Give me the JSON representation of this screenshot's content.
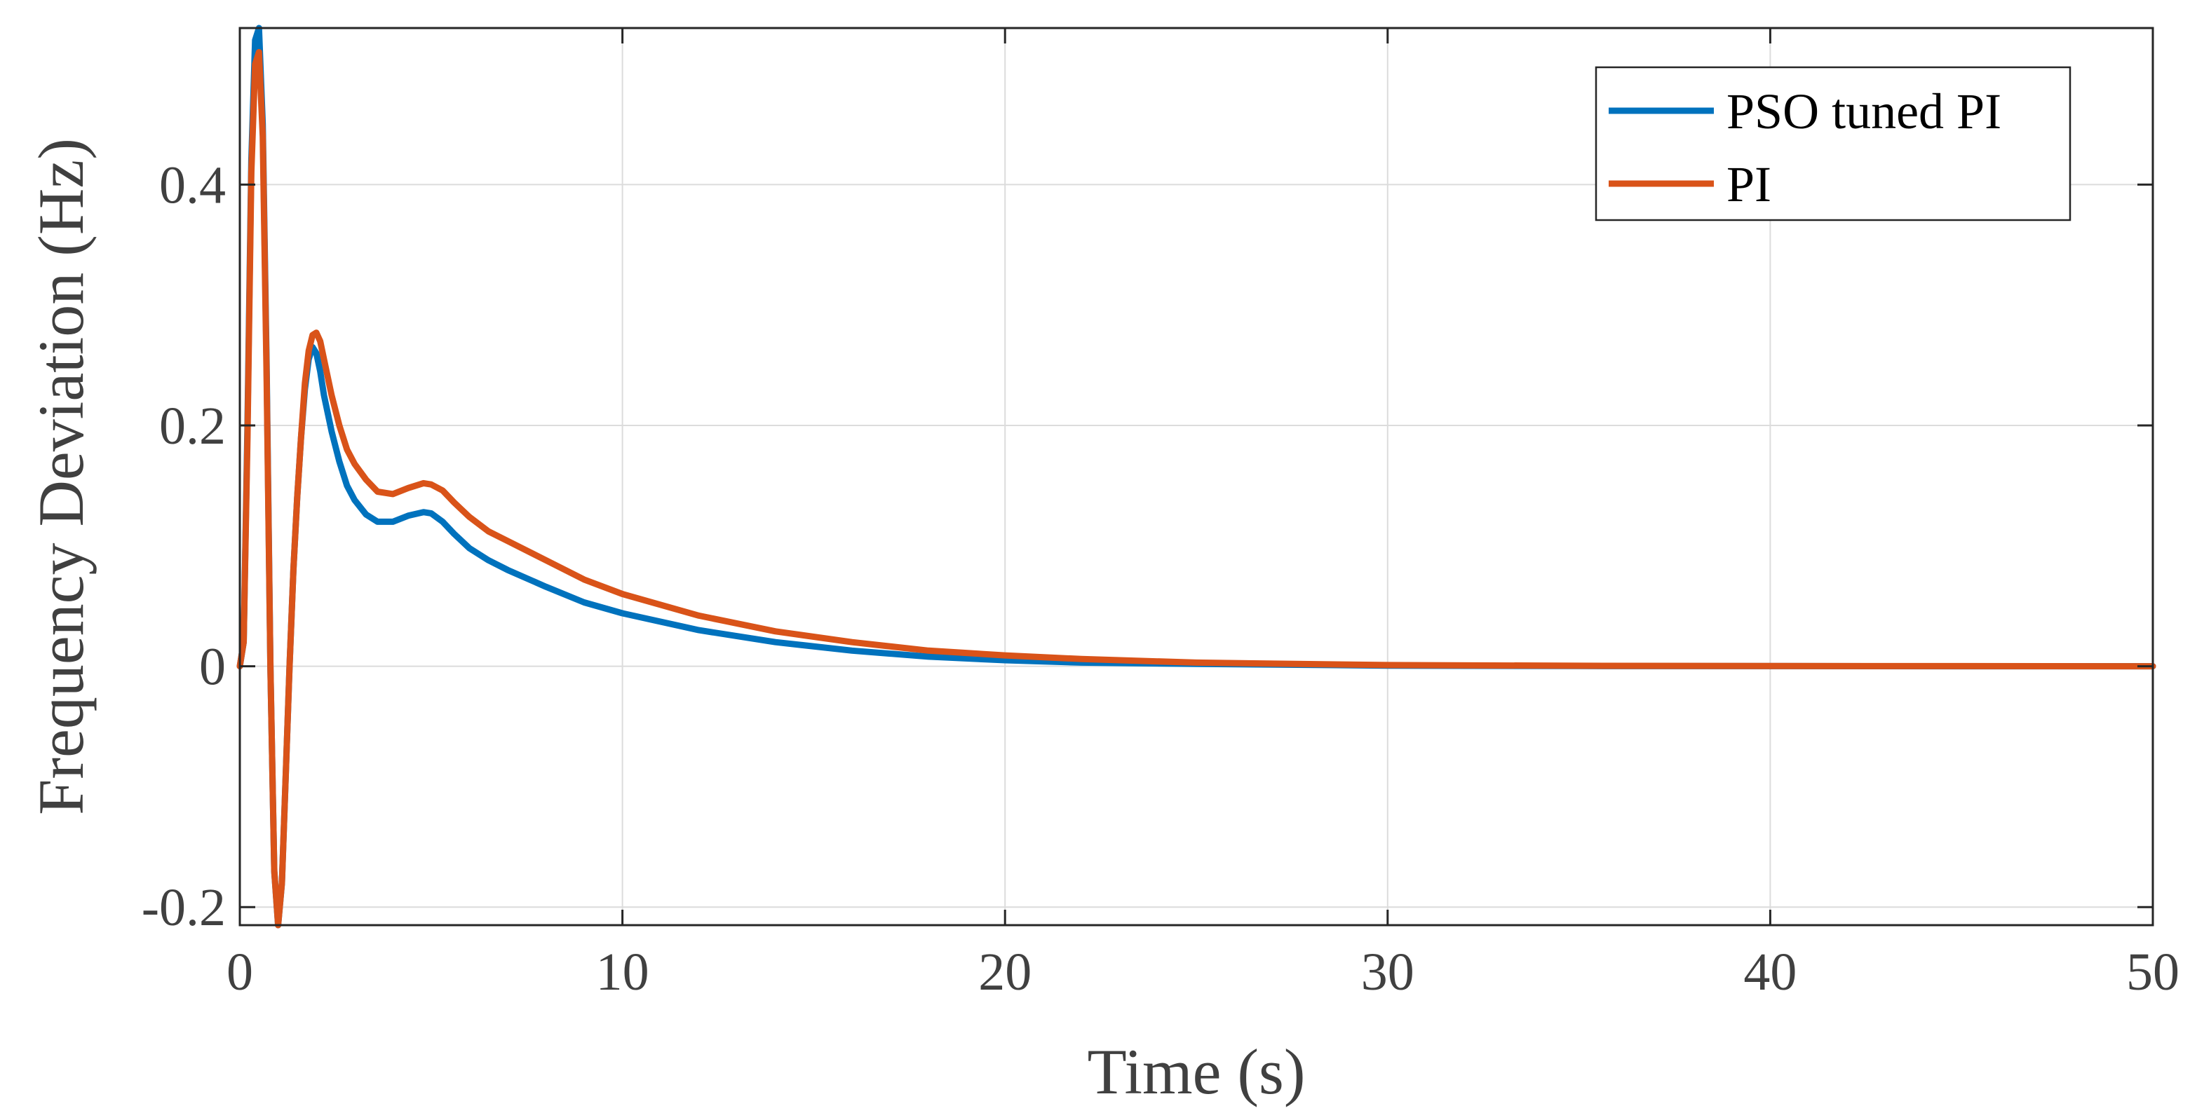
{
  "chart_data": {
    "type": "line",
    "title": "",
    "xlabel": "Time (s)",
    "ylabel": "Frequency Deviation (Hz)",
    "xlim": [
      0,
      50
    ],
    "ylim": [
      -0.215,
      0.53
    ],
    "xticks": [
      0,
      10,
      20,
      30,
      40,
      50
    ],
    "xtick_labels": [
      "0",
      "10",
      "20",
      "30",
      "40",
      "50"
    ],
    "yticks": [
      -0.2,
      0,
      0.2,
      0.4
    ],
    "ytick_labels": [
      "-0.2",
      "0",
      "0.2",
      "0.4"
    ],
    "grid": true,
    "legend_position": "top-right",
    "series": [
      {
        "name": "PSO tuned PI",
        "color": "#0072BD",
        "x": [
          0,
          0.1,
          0.2,
          0.3,
          0.4,
          0.5,
          0.6,
          0.7,
          0.8,
          0.9,
          1.0,
          1.1,
          1.2,
          1.3,
          1.4,
          1.5,
          1.6,
          1.7,
          1.8,
          1.9,
          2.0,
          2.1,
          2.2,
          2.4,
          2.6,
          2.8,
          3.0,
          3.3,
          3.6,
          4.0,
          4.4,
          4.8,
          5.0,
          5.3,
          5.6,
          6.0,
          6.5,
          7.0,
          8.0,
          9.0,
          10.0,
          12.0,
          14.0,
          16.0,
          18.0,
          20.0,
          22.0,
          25.0,
          30.0,
          35.0,
          40.0,
          45.0,
          50.0
        ],
        "y": [
          0,
          0.02,
          0.2,
          0.42,
          0.52,
          0.53,
          0.45,
          0.25,
          0.0,
          -0.17,
          -0.215,
          -0.18,
          -0.09,
          0.0,
          0.08,
          0.14,
          0.19,
          0.23,
          0.255,
          0.265,
          0.26,
          0.245,
          0.225,
          0.195,
          0.17,
          0.15,
          0.138,
          0.126,
          0.12,
          0.12,
          0.125,
          0.128,
          0.127,
          0.12,
          0.11,
          0.098,
          0.088,
          0.08,
          0.066,
          0.053,
          0.044,
          0.03,
          0.02,
          0.013,
          0.008,
          0.005,
          0.003,
          0.002,
          0.0005,
          0.0002,
          0.0001,
          0.0,
          0.0
        ]
      },
      {
        "name": "PI",
        "color": "#D95319",
        "x": [
          0,
          0.1,
          0.2,
          0.3,
          0.4,
          0.5,
          0.6,
          0.7,
          0.8,
          0.9,
          1.0,
          1.1,
          1.2,
          1.3,
          1.4,
          1.5,
          1.6,
          1.7,
          1.8,
          1.9,
          2.0,
          2.1,
          2.2,
          2.4,
          2.6,
          2.8,
          3.0,
          3.3,
          3.6,
          4.0,
          4.4,
          4.8,
          5.0,
          5.3,
          5.6,
          6.0,
          6.5,
          7.0,
          8.0,
          9.0,
          10.0,
          12.0,
          14.0,
          16.0,
          18.0,
          20.0,
          22.0,
          25.0,
          30.0,
          35.0,
          40.0,
          45.0,
          50.0
        ],
        "y": [
          0,
          0.02,
          0.19,
          0.41,
          0.5,
          0.51,
          0.44,
          0.24,
          0.0,
          -0.17,
          -0.215,
          -0.18,
          -0.09,
          0.0,
          0.08,
          0.14,
          0.19,
          0.235,
          0.262,
          0.275,
          0.277,
          0.27,
          0.255,
          0.225,
          0.2,
          0.18,
          0.168,
          0.155,
          0.145,
          0.143,
          0.148,
          0.152,
          0.151,
          0.146,
          0.136,
          0.124,
          0.112,
          0.104,
          0.088,
          0.072,
          0.06,
          0.042,
          0.029,
          0.02,
          0.013,
          0.009,
          0.006,
          0.003,
          0.001,
          0.0004,
          0.0002,
          0.0001,
          0.0
        ]
      }
    ]
  }
}
